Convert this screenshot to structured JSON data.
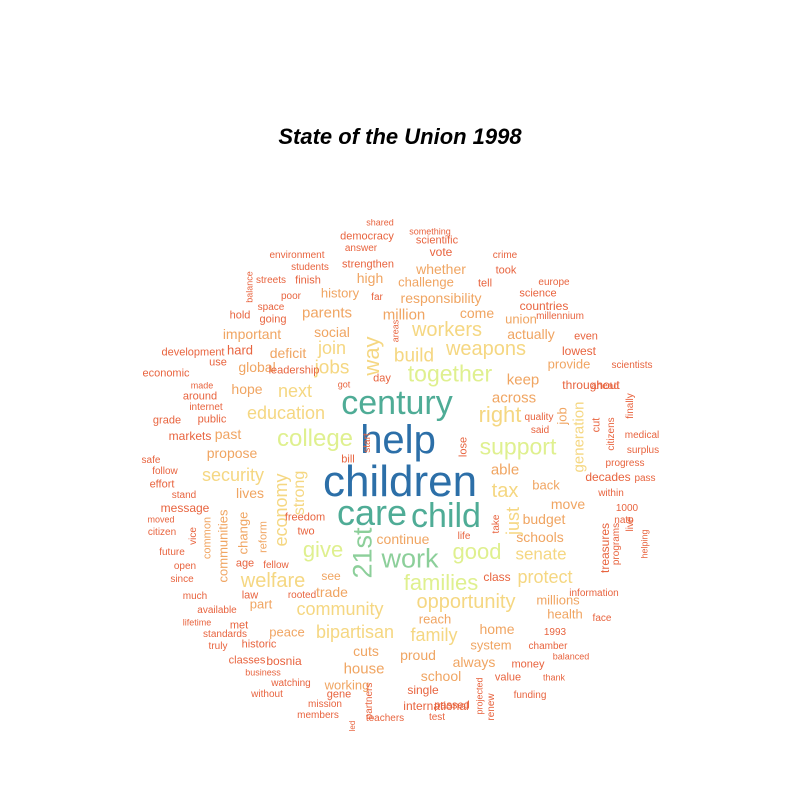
{
  "title": "State of the Union 1998",
  "colors": {
    "t1": "#2c6fa8",
    "t2": "#4fac96",
    "t3": "#8ccf9a",
    "t4": "#dff08f",
    "t5": "#f5d782",
    "t6": "#f0a562",
    "t7": "#e8643f"
  },
  "words": [
    {
      "text": "children",
      "tier": "t1"
    },
    {
      "text": "help",
      "tier": "t1"
    },
    {
      "text": "century",
      "tier": "t2"
    },
    {
      "text": "care",
      "tier": "t2"
    },
    {
      "text": "child",
      "tier": "t2"
    },
    {
      "text": "21st",
      "tier": "t3"
    },
    {
      "text": "work",
      "tier": "t3"
    },
    {
      "text": "together",
      "tier": "t4"
    },
    {
      "text": "college",
      "tier": "t4"
    },
    {
      "text": "support",
      "tier": "t4"
    },
    {
      "text": "give",
      "tier": "t4"
    },
    {
      "text": "families",
      "tier": "t4"
    },
    {
      "text": "good",
      "tier": "t4"
    },
    {
      "text": "opportunity",
      "tier": "t5"
    },
    {
      "text": "welfare",
      "tier": "t5"
    },
    {
      "text": "right",
      "tier": "t5"
    },
    {
      "text": "weapons",
      "tier": "t5"
    },
    {
      "text": "workers",
      "tier": "t5"
    },
    {
      "text": "way",
      "tier": "t5"
    },
    {
      "text": "jobs",
      "tier": "t5"
    },
    {
      "text": "tax",
      "tier": "t5"
    },
    {
      "text": "economy",
      "tier": "t5"
    },
    {
      "text": "education",
      "tier": "t5"
    },
    {
      "text": "security",
      "tier": "t5"
    },
    {
      "text": "bipartisan",
      "tier": "t5"
    },
    {
      "text": "community",
      "tier": "t5"
    },
    {
      "text": "build",
      "tier": "t5"
    },
    {
      "text": "next",
      "tier": "t5"
    },
    {
      "text": "join",
      "tier": "t5"
    },
    {
      "text": "protect",
      "tier": "t5"
    },
    {
      "text": "just",
      "tier": "t5"
    },
    {
      "text": "strong",
      "tier": "t5"
    },
    {
      "text": "family",
      "tier": "t5"
    },
    {
      "text": "senate",
      "tier": "t5"
    },
    {
      "text": "generation",
      "tier": "t5"
    },
    {
      "text": "parents",
      "tier": "t6"
    },
    {
      "text": "million",
      "tier": "t6"
    },
    {
      "text": "responsibility",
      "tier": "t6"
    },
    {
      "text": "whether",
      "tier": "t6"
    },
    {
      "text": "challenge",
      "tier": "t6"
    },
    {
      "text": "high",
      "tier": "t6"
    },
    {
      "text": "history",
      "tier": "t6"
    },
    {
      "text": "social",
      "tier": "t6"
    },
    {
      "text": "come",
      "tier": "t6"
    },
    {
      "text": "actually",
      "tier": "t6"
    },
    {
      "text": "union",
      "tier": "t6"
    },
    {
      "text": "important",
      "tier": "t6"
    },
    {
      "text": "deficit",
      "tier": "t6"
    },
    {
      "text": "global",
      "tier": "t6"
    },
    {
      "text": "hope",
      "tier": "t6"
    },
    {
      "text": "keep",
      "tier": "t6"
    },
    {
      "text": "across",
      "tier": "t6"
    },
    {
      "text": "past",
      "tier": "t6"
    },
    {
      "text": "propose",
      "tier": "t6"
    },
    {
      "text": "able",
      "tier": "t6"
    },
    {
      "text": "lives",
      "tier": "t6"
    },
    {
      "text": "change",
      "tier": "t6"
    },
    {
      "text": "communities",
      "tier": "t6"
    },
    {
      "text": "common",
      "tier": "t6"
    },
    {
      "text": "budget",
      "tier": "t6"
    },
    {
      "text": "schools",
      "tier": "t6"
    },
    {
      "text": "move",
      "tier": "t6"
    },
    {
      "text": "back",
      "tier": "t6"
    },
    {
      "text": "job",
      "tier": "t6"
    },
    {
      "text": "continue",
      "tier": "t6"
    },
    {
      "text": "trade",
      "tier": "t6"
    },
    {
      "text": "see",
      "tier": "t6"
    },
    {
      "text": "part",
      "tier": "t6"
    },
    {
      "text": "peace",
      "tier": "t6"
    },
    {
      "text": "cuts",
      "tier": "t6"
    },
    {
      "text": "proud",
      "tier": "t6"
    },
    {
      "text": "reach",
      "tier": "t6"
    },
    {
      "text": "home",
      "tier": "t6"
    },
    {
      "text": "system",
      "tier": "t6"
    },
    {
      "text": "always",
      "tier": "t6"
    },
    {
      "text": "house",
      "tier": "t6"
    },
    {
      "text": "school",
      "tier": "t6"
    },
    {
      "text": "working",
      "tier": "t6"
    },
    {
      "text": "millions",
      "tier": "t6"
    },
    {
      "text": "health",
      "tier": "t6"
    },
    {
      "text": "provide",
      "tier": "t6"
    },
    {
      "text": "reform",
      "tier": "t6"
    },
    {
      "text": "freedom",
      "tier": "t7"
    },
    {
      "text": "two",
      "tier": "t7"
    },
    {
      "text": "bill",
      "tier": "t7"
    },
    {
      "text": "start",
      "tier": "t7"
    },
    {
      "text": "lose",
      "tier": "t7"
    },
    {
      "text": "take",
      "tier": "t7"
    },
    {
      "text": "life",
      "tier": "t7"
    },
    {
      "text": "class",
      "tier": "t7"
    },
    {
      "text": "age",
      "tier": "t7"
    },
    {
      "text": "fellow",
      "tier": "t7"
    },
    {
      "text": "law",
      "tier": "t7"
    },
    {
      "text": "rooted",
      "tier": "t7"
    },
    {
      "text": "met",
      "tier": "t7"
    },
    {
      "text": "historic",
      "tier": "t7"
    },
    {
      "text": "bosnia",
      "tier": "t7"
    },
    {
      "text": "leadership",
      "tier": "t7"
    },
    {
      "text": "day",
      "tier": "t7"
    },
    {
      "text": "got",
      "tier": "t7"
    },
    {
      "text": "areas",
      "tier": "t7"
    },
    {
      "text": "far",
      "tier": "t7"
    },
    {
      "text": "tell",
      "tier": "t7"
    },
    {
      "text": "vote",
      "tier": "t7"
    },
    {
      "text": "strengthen",
      "tier": "t7"
    },
    {
      "text": "answer",
      "tier": "t7"
    },
    {
      "text": "democracy",
      "tier": "t7"
    },
    {
      "text": "shared",
      "tier": "t7"
    },
    {
      "text": "something",
      "tier": "t7"
    },
    {
      "text": "scientific",
      "tier": "t7"
    },
    {
      "text": "environment",
      "tier": "t7"
    },
    {
      "text": "students",
      "tier": "t7"
    },
    {
      "text": "finish",
      "tier": "t7"
    },
    {
      "text": "streets",
      "tier": "t7"
    },
    {
      "text": "poor",
      "tier": "t7"
    },
    {
      "text": "balance",
      "tier": "t7"
    },
    {
      "text": "space",
      "tier": "t7"
    },
    {
      "text": "hold",
      "tier": "t7"
    },
    {
      "text": "going",
      "tier": "t7"
    },
    {
      "text": "crime",
      "tier": "t7"
    },
    {
      "text": "took",
      "tier": "t7"
    },
    {
      "text": "europe",
      "tier": "t7"
    },
    {
      "text": "science",
      "tier": "t7"
    },
    {
      "text": "countries",
      "tier": "t7"
    },
    {
      "text": "millennium",
      "tier": "t7"
    },
    {
      "text": "even",
      "tier": "t7"
    },
    {
      "text": "lowest",
      "tier": "t7"
    },
    {
      "text": "scientists",
      "tier": "t7"
    },
    {
      "text": "throughout",
      "tier": "t7"
    },
    {
      "text": "ahead",
      "tier": "t7"
    },
    {
      "text": "finally",
      "tier": "t7"
    },
    {
      "text": "quality",
      "tier": "t7"
    },
    {
      "text": "said",
      "tier": "t7"
    },
    {
      "text": "cut",
      "tier": "t7"
    },
    {
      "text": "citizens",
      "tier": "t7"
    },
    {
      "text": "medical",
      "tier": "t7"
    },
    {
      "text": "surplus",
      "tier": "t7"
    },
    {
      "text": "progress",
      "tier": "t7"
    },
    {
      "text": "decades",
      "tier": "t7"
    },
    {
      "text": "pass",
      "tier": "t7"
    },
    {
      "text": "within",
      "tier": "t7"
    },
    {
      "text": "1000",
      "tier": "t7"
    },
    {
      "text": "nato",
      "tier": "t7"
    },
    {
      "text": "live",
      "tier": "t7"
    },
    {
      "text": "programs",
      "tier": "t7"
    },
    {
      "text": "helping",
      "tier": "t7"
    },
    {
      "text": "treasures",
      "tier": "t7"
    },
    {
      "text": "information",
      "tier": "t7"
    },
    {
      "text": "face",
      "tier": "t7"
    },
    {
      "text": "1993",
      "tier": "t7"
    },
    {
      "text": "chamber",
      "tier": "t7"
    },
    {
      "text": "balanced",
      "tier": "t7"
    },
    {
      "text": "money",
      "tier": "t7"
    },
    {
      "text": "value",
      "tier": "t7"
    },
    {
      "text": "thank",
      "tier": "t7"
    },
    {
      "text": "funding",
      "tier": "t7"
    },
    {
      "text": "projected",
      "tier": "t7"
    },
    {
      "text": "renew",
      "tier": "t7"
    },
    {
      "text": "passed",
      "tier": "t7"
    },
    {
      "text": "test",
      "tier": "t7"
    },
    {
      "text": "single",
      "tier": "t7"
    },
    {
      "text": "international",
      "tier": "t7"
    },
    {
      "text": "teachers",
      "tier": "t7"
    },
    {
      "text": "partners",
      "tier": "t7"
    },
    {
      "text": "led",
      "tier": "t7"
    },
    {
      "text": "gene",
      "tier": "t7"
    },
    {
      "text": "mission",
      "tier": "t7"
    },
    {
      "text": "members",
      "tier": "t7"
    },
    {
      "text": "without",
      "tier": "t7"
    },
    {
      "text": "watching",
      "tier": "t7"
    },
    {
      "text": "business",
      "tier": "t7"
    },
    {
      "text": "classes",
      "tier": "t7"
    },
    {
      "text": "truly",
      "tier": "t7"
    },
    {
      "text": "standards",
      "tier": "t7"
    },
    {
      "text": "lifetime",
      "tier": "t7"
    },
    {
      "text": "available",
      "tier": "t7"
    },
    {
      "text": "much",
      "tier": "t7"
    },
    {
      "text": "since",
      "tier": "t7"
    },
    {
      "text": "open",
      "tier": "t7"
    },
    {
      "text": "future",
      "tier": "t7"
    },
    {
      "text": "vice",
      "tier": "t7"
    },
    {
      "text": "citizen",
      "tier": "t7"
    },
    {
      "text": "moved",
      "tier": "t7"
    },
    {
      "text": "message",
      "tier": "t7"
    },
    {
      "text": "stand",
      "tier": "t7"
    },
    {
      "text": "effort",
      "tier": "t7"
    },
    {
      "text": "follow",
      "tier": "t7"
    },
    {
      "text": "safe",
      "tier": "t7"
    },
    {
      "text": "markets",
      "tier": "t7"
    },
    {
      "text": "public",
      "tier": "t7"
    },
    {
      "text": "grade",
      "tier": "t7"
    },
    {
      "text": "internet",
      "tier": "t7"
    },
    {
      "text": "around",
      "tier": "t7"
    },
    {
      "text": "made",
      "tier": "t7"
    },
    {
      "text": "economic",
      "tier": "t7"
    },
    {
      "text": "development",
      "tier": "t7"
    },
    {
      "text": "use",
      "tier": "t7"
    },
    {
      "text": "hard",
      "tier": "t7"
    },
    {
      "text": "reduce",
      "tier": "t7"
    }
  ]
}
